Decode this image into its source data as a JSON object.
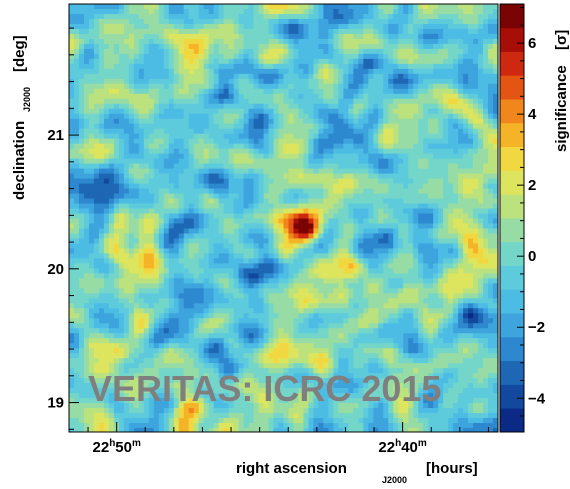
{
  "chart_data": {
    "type": "heatmap",
    "title": "",
    "xlabel": {
      "main": "right ascension",
      "subscript": "J2000",
      "unit": "[hours]"
    },
    "ylabel": {
      "main": "declination",
      "subscript": "J2000",
      "unit": "[deg]"
    },
    "zlabel": {
      "main": "significance",
      "unit": "[σ]"
    },
    "x_ticks": [
      {
        "value": 22.8333,
        "hours": "22",
        "minutes": "50"
      },
      {
        "value": 22.6667,
        "hours": "22",
        "minutes": "40"
      }
    ],
    "x_range_hours": [
      22.8611,
      22.6111
    ],
    "x_direction": "decreasing to the right",
    "y_ticks": [
      {
        "value": 19,
        "label": "19"
      },
      {
        "value": 20,
        "label": "20"
      },
      {
        "value": 21,
        "label": "21"
      }
    ],
    "y_range_deg": [
      18.78,
      21.98
    ],
    "z_range": [
      -4.95,
      7.1
    ],
    "z_ticks": [
      {
        "value": -4,
        "label": "−4"
      },
      {
        "value": -2,
        "label": "−2"
      },
      {
        "value": 0,
        "label": "0"
      },
      {
        "value": 2,
        "label": "2"
      },
      {
        "value": 4,
        "label": "4"
      },
      {
        "value": 6,
        "label": "6"
      }
    ],
    "colormap": [
      "#0a2a85",
      "#12489e",
      "#1d67b4",
      "#2d88cf",
      "#3da4dd",
      "#4dbce4",
      "#5ecbdd",
      "#74d6c8",
      "#98dca5",
      "#bce27e",
      "#dde55e",
      "#f2d840",
      "#f5b428",
      "#f1861c",
      "#e45514",
      "#cf2810",
      "#a80e08",
      "#7a0404"
    ],
    "hotspot": {
      "ra_hours": 22.7253,
      "dec_deg": 20.32,
      "peak_sigma": 6.6
    },
    "grid": false,
    "legend": "color bar on right"
  },
  "watermark": "VERITAS: ICRC 2015"
}
